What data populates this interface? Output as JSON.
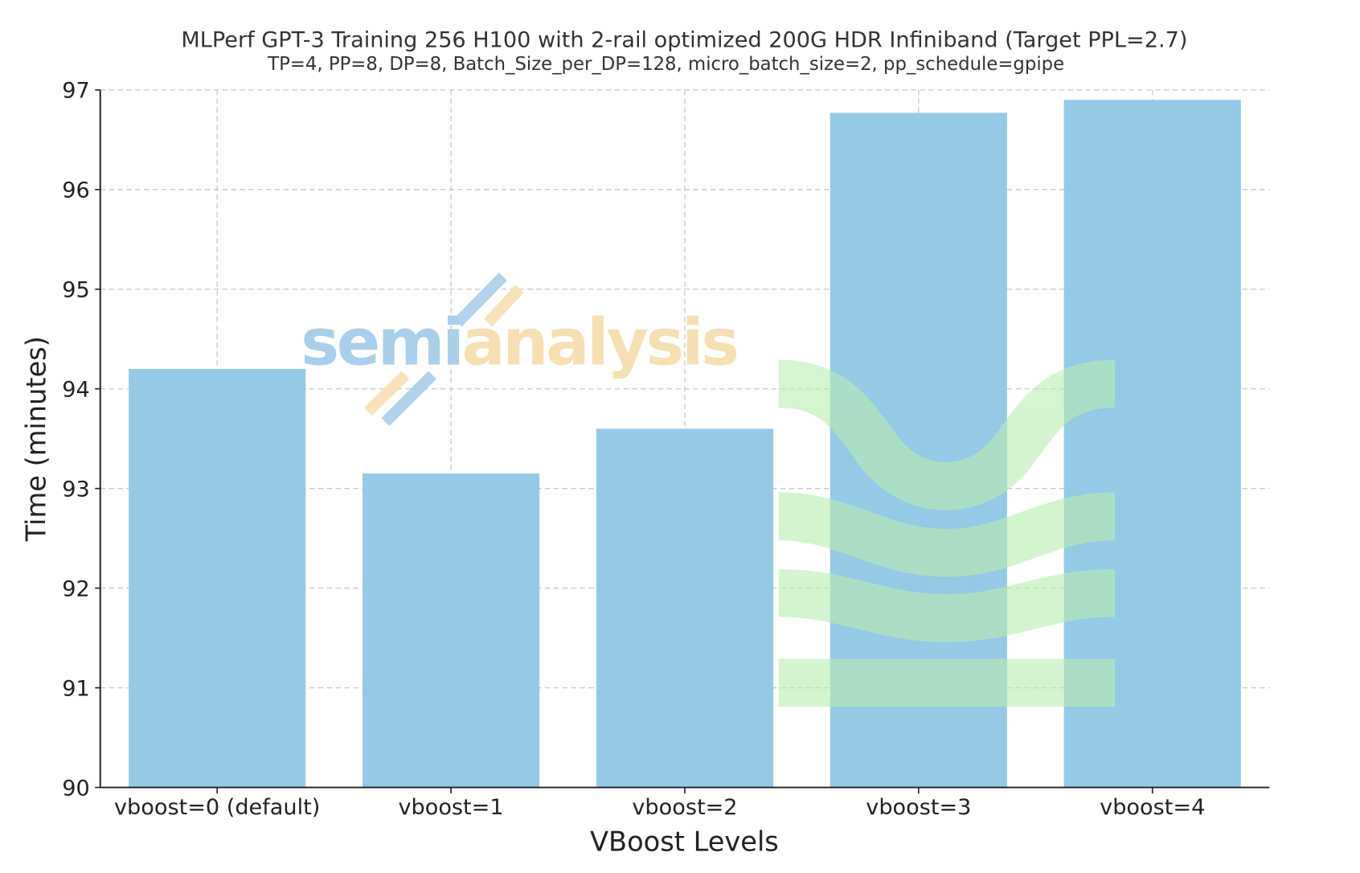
{
  "chart_data": {
    "type": "bar",
    "title": "MLPerf GPT-3 Training 256 H100 with 2-rail optimized 200G HDR Infiniband (Target PPL=2.7)",
    "subtitle": "TP=4, PP=8, DP=8, Batch_Size_per_DP=128, micro_batch_size=2, pp_schedule=gpipe",
    "xlabel": "VBoost Levels",
    "ylabel": "Time (minutes)",
    "categories": [
      "vboost=0 (default)",
      "vboost=1",
      "vboost=2",
      "vboost=3",
      "vboost=4"
    ],
    "values": [
      94.2,
      93.15,
      93.6,
      96.77,
      96.9
    ],
    "ylim": [
      90,
      97
    ],
    "yticks": [
      90,
      91,
      92,
      93,
      94,
      95,
      96,
      97
    ],
    "grid": true,
    "bar_color": "#95c9e6",
    "watermark": {
      "logo_text_left": "semi",
      "logo_text_right": "analysis",
      "blue": "#a9cfea",
      "orange": "#f7dfb4",
      "green": "#b8eeb0"
    }
  }
}
